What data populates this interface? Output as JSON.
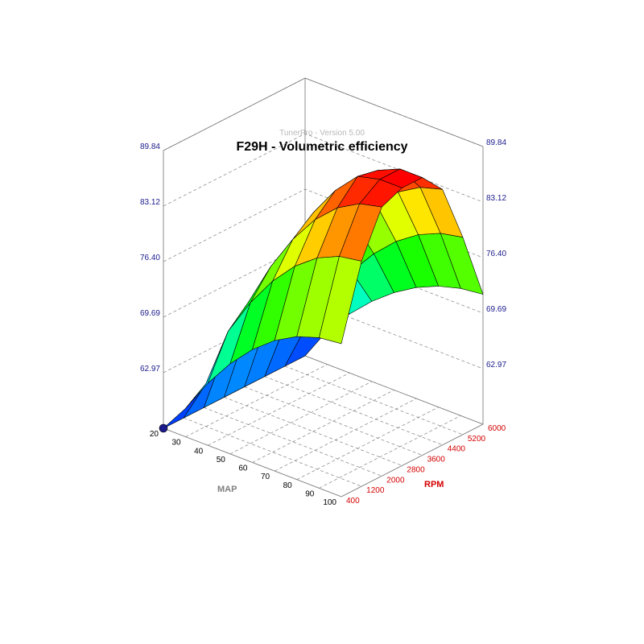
{
  "window": {
    "watermark": "TunerPro - Version 5.00"
  },
  "colors": {
    "z_tick": "#1a1a8c",
    "x_tick": "#d40000",
    "y_tick": "#000000",
    "x_axis_label": "#d40000",
    "y_axis_label": "#808080",
    "grid": "#808080",
    "box": "#707070",
    "mesh_line": "#000000"
  },
  "chart_data": {
    "type": "surface3d",
    "title": "F29H - Volumetric efficiency",
    "xlabel": "RPM",
    "ylabel": "MAP",
    "x_ticks": [
      "400",
      "1200",
      "2000",
      "2800",
      "3600",
      "4400",
      "5200",
      "6000"
    ],
    "y_ticks": [
      "20",
      "30",
      "40",
      "50",
      "60",
      "70",
      "80",
      "90",
      "100"
    ],
    "z_ticks": [
      "62.97",
      "69.69",
      "76.40",
      "83.12",
      "89.84"
    ],
    "xlim": [
      400,
      6000
    ],
    "ylim": [
      20,
      100
    ],
    "zlim": [
      56.25,
      89.84
    ],
    "grid": true,
    "colorscale": "rainbow (blue low → red high)",
    "surface_points": [
      {
        "rpm": 400,
        "map": 20,
        "ve": 56.3
      },
      {
        "rpm": 400,
        "map": 40,
        "ve": 57.5
      },
      {
        "rpm": 400,
        "map": 50,
        "ve": 59
      },
      {
        "rpm": 400,
        "map": 70,
        "ve": 64
      },
      {
        "rpm": 400,
        "map": 100,
        "ve": 70
      },
      {
        "rpm": 1200,
        "map": 40,
        "ve": 64
      },
      {
        "rpm": 1200,
        "map": 100,
        "ve": 78
      },
      {
        "rpm": 2800,
        "map": 100,
        "ve": 86
      },
      {
        "rpm": 3600,
        "map": 100,
        "ve": 88.5
      },
      {
        "rpm": 4400,
        "map": 100,
        "ve": 89
      },
      {
        "rpm": 6000,
        "map": 100,
        "ve": 85
      },
      {
        "rpm": 6000,
        "map": 20,
        "ve": 71
      }
    ]
  }
}
